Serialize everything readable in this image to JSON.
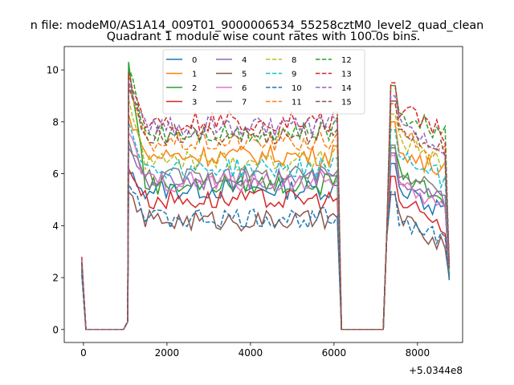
{
  "chart_data": {
    "type": "line",
    "suptitle": "n file: modeM0/AS1A14_009T01_9000006534_55258cztM0_level2_quad_clean",
    "title": "Quadrant 1 module wise count rates with 100.0s bins.",
    "xlabel": "",
    "ylabel": "",
    "x_offset_label": "+5.0344e8",
    "xlim": [
      -460,
      9080
    ],
    "ylim": [
      -0.5,
      10.9
    ],
    "xticks": [
      0,
      2000,
      4000,
      6000,
      8000
    ],
    "yticks": [
      0,
      2,
      4,
      6,
      8,
      10
    ],
    "grid": false,
    "legend_position": "top-center",
    "legend_columns": 4,
    "segments": [
      {
        "start": -40,
        "end": 1080,
        "shape": "dip",
        "peak_start": true
      },
      {
        "start": 1080,
        "end": 6180,
        "shape": "plateau"
      },
      {
        "start": 6180,
        "end": 7260,
        "shape": "zero"
      },
      {
        "start": 7260,
        "end": 8760,
        "shape": "plateau_decay"
      }
    ],
    "series": [
      {
        "name": "0",
        "style": "solid",
        "color": "#1f77b4",
        "start_value": 2.3,
        "level": 5.4,
        "level2": 5.6,
        "peak": 6.0
      },
      {
        "name": "1",
        "style": "solid",
        "color": "#ff7f0e",
        "start_value": 2.4,
        "level": 6.7,
        "level2": 7.2,
        "peak": 8.3
      },
      {
        "name": "2",
        "style": "solid",
        "color": "#2ca02c",
        "start_value": 2.3,
        "level": 5.6,
        "level2": 6.2,
        "peak": 10.3
      },
      {
        "name": "3",
        "style": "solid",
        "color": "#d62728",
        "start_value": 2.5,
        "level": 5.0,
        "level2": 5.1,
        "peak": 6.2
      },
      {
        "name": "4",
        "style": "solid",
        "color": "#9467bd",
        "start_value": 2.4,
        "level": 5.8,
        "level2": 6.0,
        "peak": 7.0
      },
      {
        "name": "5",
        "style": "solid",
        "color": "#8c564b",
        "start_value": 2.2,
        "level": 4.2,
        "level2": 4.4,
        "peak": 5.3
      },
      {
        "name": "6",
        "style": "solid",
        "color": "#e377c2",
        "start_value": 2.4,
        "level": 5.7,
        "level2": 5.9,
        "peak": 7.6
      },
      {
        "name": "7",
        "style": "solid",
        "color": "#7f7f7f",
        "start_value": 2.4,
        "level": 5.9,
        "level2": 6.3,
        "peak": 7.3
      },
      {
        "name": "8",
        "style": "dashed",
        "color": "#bcbd22",
        "start_value": 2.5,
        "level": 6.5,
        "level2": 7.5,
        "peak": 8.9
      },
      {
        "name": "9",
        "style": "dashed",
        "color": "#17becf",
        "start_value": 2.4,
        "level": 6.2,
        "level2": 6.9,
        "peak": 8.0
      },
      {
        "name": "10",
        "style": "dashed",
        "color": "#1f77b4",
        "start_value": 2.1,
        "level": 4.3,
        "level2": 4.5,
        "peak": 5.6
      },
      {
        "name": "11",
        "style": "dashed",
        "color": "#ff7f0e",
        "start_value": 2.6,
        "level": 7.2,
        "level2": 7.9,
        "peak": 9.3
      },
      {
        "name": "12",
        "style": "dashed",
        "color": "#2ca02c",
        "start_value": 2.6,
        "level": 7.6,
        "level2": 8.6,
        "peak": 10.1
      },
      {
        "name": "13",
        "style": "dashed",
        "color": "#d62728",
        "start_value": 2.8,
        "level": 8.0,
        "level2": 8.7,
        "peak": 9.9
      },
      {
        "name": "14",
        "style": "dashed",
        "color": "#9467bd",
        "start_value": 2.7,
        "level": 7.8,
        "level2": 8.2,
        "peak": 9.6
      },
      {
        "name": "15",
        "style": "dashed",
        "color": "#8c564b",
        "start_value": 2.6,
        "level": 7.5,
        "level2": 8.0,
        "peak": 9.4
      }
    ]
  }
}
